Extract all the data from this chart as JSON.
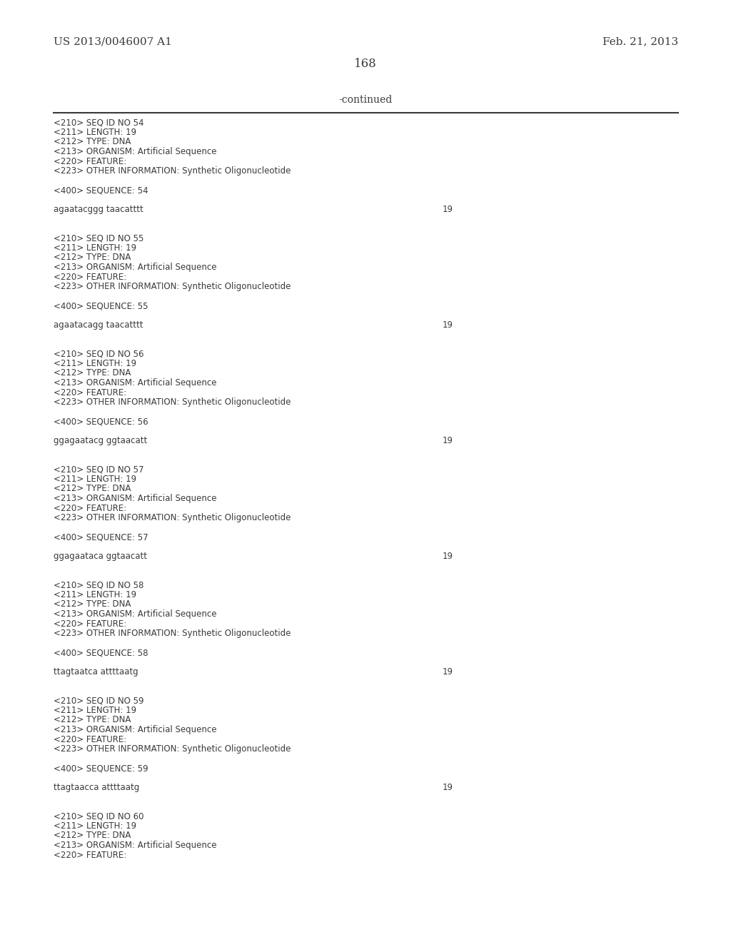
{
  "background_color": "#ffffff",
  "top_left_text": "US 2013/0046007 A1",
  "top_right_text": "Feb. 21, 2013",
  "page_number": "168",
  "continued_text": "-continued",
  "font_size_header": 11,
  "font_size_page": 12,
  "font_size_continued": 10,
  "font_size_mono": 8.5,
  "mono_font": "Courier New",
  "serif_font": "DejaVu Serif",
  "text_color": "#3a3a3a",
  "line_color": "#3a3a3a",
  "content": [
    {
      "text": "<210> SEQ ID NO 54",
      "type": "meta"
    },
    {
      "text": "<211> LENGTH: 19",
      "type": "meta"
    },
    {
      "text": "<212> TYPE: DNA",
      "type": "meta"
    },
    {
      "text": "<213> ORGANISM: Artificial Sequence",
      "type": "meta"
    },
    {
      "text": "<220> FEATURE:",
      "type": "meta"
    },
    {
      "text": "<223> OTHER INFORMATION: Synthetic Oligonucleotide",
      "type": "meta"
    },
    {
      "text": "",
      "type": "blank"
    },
    {
      "text": "<400> SEQUENCE: 54",
      "type": "meta"
    },
    {
      "text": "",
      "type": "blank"
    },
    {
      "text": "agaatacggg taacatttt",
      "type": "seq",
      "number": "19"
    },
    {
      "text": "",
      "type": "blank"
    },
    {
      "text": "",
      "type": "blank"
    },
    {
      "text": "<210> SEQ ID NO 55",
      "type": "meta"
    },
    {
      "text": "<211> LENGTH: 19",
      "type": "meta"
    },
    {
      "text": "<212> TYPE: DNA",
      "type": "meta"
    },
    {
      "text": "<213> ORGANISM: Artificial Sequence",
      "type": "meta"
    },
    {
      "text": "<220> FEATURE:",
      "type": "meta"
    },
    {
      "text": "<223> OTHER INFORMATION: Synthetic Oligonucleotide",
      "type": "meta"
    },
    {
      "text": "",
      "type": "blank"
    },
    {
      "text": "<400> SEQUENCE: 55",
      "type": "meta"
    },
    {
      "text": "",
      "type": "blank"
    },
    {
      "text": "agaatacagg taacatttt",
      "type": "seq",
      "number": "19"
    },
    {
      "text": "",
      "type": "blank"
    },
    {
      "text": "",
      "type": "blank"
    },
    {
      "text": "<210> SEQ ID NO 56",
      "type": "meta"
    },
    {
      "text": "<211> LENGTH: 19",
      "type": "meta"
    },
    {
      "text": "<212> TYPE: DNA",
      "type": "meta"
    },
    {
      "text": "<213> ORGANISM: Artificial Sequence",
      "type": "meta"
    },
    {
      "text": "<220> FEATURE:",
      "type": "meta"
    },
    {
      "text": "<223> OTHER INFORMATION: Synthetic Oligonucleotide",
      "type": "meta"
    },
    {
      "text": "",
      "type": "blank"
    },
    {
      "text": "<400> SEQUENCE: 56",
      "type": "meta"
    },
    {
      "text": "",
      "type": "blank"
    },
    {
      "text": "ggagaatacg ggtaacatt",
      "type": "seq",
      "number": "19"
    },
    {
      "text": "",
      "type": "blank"
    },
    {
      "text": "",
      "type": "blank"
    },
    {
      "text": "<210> SEQ ID NO 57",
      "type": "meta"
    },
    {
      "text": "<211> LENGTH: 19",
      "type": "meta"
    },
    {
      "text": "<212> TYPE: DNA",
      "type": "meta"
    },
    {
      "text": "<213> ORGANISM: Artificial Sequence",
      "type": "meta"
    },
    {
      "text": "<220> FEATURE:",
      "type": "meta"
    },
    {
      "text": "<223> OTHER INFORMATION: Synthetic Oligonucleotide",
      "type": "meta"
    },
    {
      "text": "",
      "type": "blank"
    },
    {
      "text": "<400> SEQUENCE: 57",
      "type": "meta"
    },
    {
      "text": "",
      "type": "blank"
    },
    {
      "text": "ggagaataca ggtaacatt",
      "type": "seq",
      "number": "19"
    },
    {
      "text": "",
      "type": "blank"
    },
    {
      "text": "",
      "type": "blank"
    },
    {
      "text": "<210> SEQ ID NO 58",
      "type": "meta"
    },
    {
      "text": "<211> LENGTH: 19",
      "type": "meta"
    },
    {
      "text": "<212> TYPE: DNA",
      "type": "meta"
    },
    {
      "text": "<213> ORGANISM: Artificial Sequence",
      "type": "meta"
    },
    {
      "text": "<220> FEATURE:",
      "type": "meta"
    },
    {
      "text": "<223> OTHER INFORMATION: Synthetic Oligonucleotide",
      "type": "meta"
    },
    {
      "text": "",
      "type": "blank"
    },
    {
      "text": "<400> SEQUENCE: 58",
      "type": "meta"
    },
    {
      "text": "",
      "type": "blank"
    },
    {
      "text": "ttagtaatca attttaatg",
      "type": "seq",
      "number": "19"
    },
    {
      "text": "",
      "type": "blank"
    },
    {
      "text": "",
      "type": "blank"
    },
    {
      "text": "<210> SEQ ID NO 59",
      "type": "meta"
    },
    {
      "text": "<211> LENGTH: 19",
      "type": "meta"
    },
    {
      "text": "<212> TYPE: DNA",
      "type": "meta"
    },
    {
      "text": "<213> ORGANISM: Artificial Sequence",
      "type": "meta"
    },
    {
      "text": "<220> FEATURE:",
      "type": "meta"
    },
    {
      "text": "<223> OTHER INFORMATION: Synthetic Oligonucleotide",
      "type": "meta"
    },
    {
      "text": "",
      "type": "blank"
    },
    {
      "text": "<400> SEQUENCE: 59",
      "type": "meta"
    },
    {
      "text": "",
      "type": "blank"
    },
    {
      "text": "ttagtaacca attttaatg",
      "type": "seq",
      "number": "19"
    },
    {
      "text": "",
      "type": "blank"
    },
    {
      "text": "",
      "type": "blank"
    },
    {
      "text": "<210> SEQ ID NO 60",
      "type": "meta"
    },
    {
      "text": "<211> LENGTH: 19",
      "type": "meta"
    },
    {
      "text": "<212> TYPE: DNA",
      "type": "meta"
    },
    {
      "text": "<213> ORGANISM: Artificial Sequence",
      "type": "meta"
    },
    {
      "text": "<220> FEATURE:",
      "type": "meta"
    }
  ]
}
